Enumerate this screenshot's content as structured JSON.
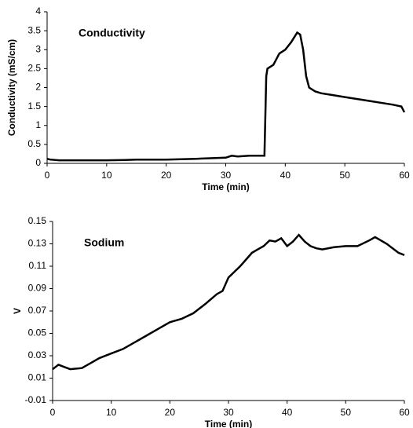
{
  "chart_data": [
    {
      "type": "line",
      "annotation": "Conductivity",
      "xlabel": "Time (min)",
      "ylabel": "Conductivity (mS/cm)",
      "xlim": [
        0,
        60
      ],
      "ylim": [
        0,
        4
      ],
      "xticks": [
        0,
        10,
        20,
        30,
        40,
        50,
        60
      ],
      "yticks": [
        0,
        0.5,
        1,
        1.5,
        2,
        2.5,
        3,
        3.5,
        4
      ],
      "series": [
        {
          "name": "Conductivity",
          "color": "#000000",
          "x": [
            0,
            0.5,
            2,
            5,
            10,
            13,
            15,
            20,
            25,
            30,
            31,
            32,
            34,
            36.5,
            36.8,
            37,
            38,
            39,
            40,
            41,
            42,
            42.5,
            43,
            43.5,
            44,
            45,
            46,
            48,
            50,
            52,
            54,
            56,
            58,
            59.5,
            60
          ],
          "values": [
            0.12,
            0.1,
            0.08,
            0.08,
            0.08,
            0.09,
            0.1,
            0.1,
            0.12,
            0.15,
            0.2,
            0.18,
            0.2,
            0.2,
            2.3,
            2.5,
            2.6,
            2.9,
            3.0,
            3.2,
            3.45,
            3.4,
            3.0,
            2.3,
            2.0,
            1.9,
            1.85,
            1.8,
            1.75,
            1.7,
            1.65,
            1.6,
            1.55,
            1.5,
            1.35
          ]
        }
      ]
    },
    {
      "type": "line",
      "annotation": "Sodium",
      "xlabel": "Time (min)",
      "ylabel": "V",
      "xlim": [
        0,
        60
      ],
      "ylim": [
        -0.01,
        0.15
      ],
      "xticks": [
        0,
        10,
        20,
        30,
        40,
        50,
        60
      ],
      "yticks": [
        -0.01,
        0.01,
        0.03,
        0.05,
        0.07,
        0.09,
        0.11,
        0.13,
        0.15
      ],
      "series": [
        {
          "name": "Sodium",
          "color": "#000000",
          "x": [
            0,
            1,
            2,
            3,
            5,
            6,
            8,
            10,
            12,
            14,
            16,
            18,
            20,
            22,
            24,
            26,
            28,
            29,
            30,
            31,
            32,
            33,
            34,
            35,
            36,
            37,
            38,
            39,
            40,
            41,
            42,
            43,
            44,
            45,
            46,
            48,
            50,
            52,
            54,
            55,
            56,
            57,
            58,
            59,
            60
          ],
          "values": [
            0.018,
            0.022,
            0.02,
            0.018,
            0.019,
            0.022,
            0.028,
            0.032,
            0.036,
            0.042,
            0.048,
            0.054,
            0.06,
            0.063,
            0.068,
            0.076,
            0.085,
            0.088,
            0.1,
            0.105,
            0.11,
            0.116,
            0.122,
            0.125,
            0.128,
            0.133,
            0.132,
            0.135,
            0.128,
            0.132,
            0.138,
            0.132,
            0.128,
            0.126,
            0.125,
            0.127,
            0.128,
            0.128,
            0.133,
            0.136,
            0.133,
            0.13,
            0.126,
            0.122,
            0.12
          ]
        }
      ]
    }
  ]
}
